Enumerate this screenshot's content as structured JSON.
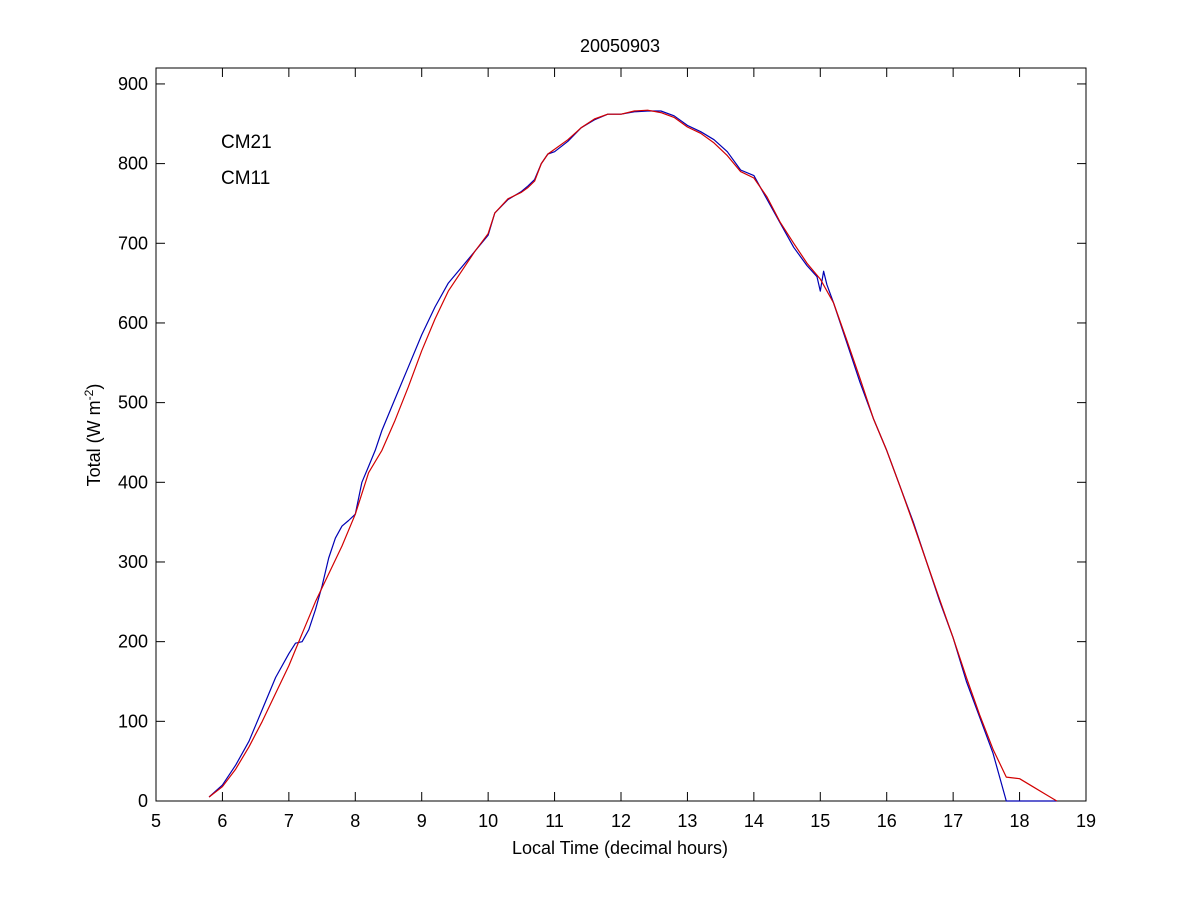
{
  "chart_data": {
    "type": "line",
    "title": "20050903",
    "xlabel": "Local Time (decimal hours)",
    "ylabel": {
      "base": "Total (W m",
      "sup": "-2",
      "close": ")"
    },
    "xlim": [
      5,
      19
    ],
    "ylim": [
      0,
      920
    ],
    "xticks": [
      5,
      6,
      7,
      8,
      9,
      10,
      11,
      12,
      13,
      14,
      15,
      16,
      17,
      18,
      19
    ],
    "yticks": [
      0,
      100,
      200,
      300,
      400,
      500,
      600,
      700,
      800,
      900
    ],
    "grid": false,
    "legend": {
      "placement": "top-left"
    },
    "series": [
      {
        "name": "CM21",
        "color": "#0000b4",
        "x": [
          5.8,
          6.0,
          6.2,
          6.4,
          6.6,
          6.8,
          7.0,
          7.1,
          7.2,
          7.3,
          7.4,
          7.5,
          7.6,
          7.7,
          7.8,
          7.9,
          8.0,
          8.1,
          8.2,
          8.3,
          8.4,
          8.6,
          8.8,
          9.0,
          9.2,
          9.4,
          9.6,
          9.8,
          10.0,
          10.1,
          10.3,
          10.5,
          10.6,
          10.7,
          10.8,
          10.9,
          11.0,
          11.2,
          11.4,
          11.6,
          11.8,
          12.0,
          12.2,
          12.4,
          12.6,
          12.8,
          13.0,
          13.2,
          13.4,
          13.6,
          13.8,
          14.0,
          14.2,
          14.4,
          14.6,
          14.8,
          14.95,
          15.0,
          15.05,
          15.1,
          15.2,
          15.4,
          15.6,
          15.8,
          16.0,
          16.2,
          16.4,
          16.6,
          16.8,
          17.0,
          17.2,
          17.4,
          17.6,
          17.8,
          18.0,
          18.2,
          18.4,
          18.56
        ],
        "y": [
          5,
          20,
          45,
          75,
          115,
          155,
          185,
          198,
          200,
          215,
          240,
          270,
          305,
          330,
          345,
          352,
          360,
          400,
          420,
          440,
          465,
          505,
          545,
          585,
          620,
          650,
          670,
          690,
          710,
          738,
          755,
          765,
          772,
          780,
          800,
          812,
          815,
          828,
          845,
          855,
          862,
          862,
          865,
          866,
          866,
          860,
          848,
          840,
          830,
          815,
          792,
          785,
          755,
          725,
          695,
          672,
          658,
          640,
          665,
          648,
          625,
          575,
          525,
          480,
          440,
          395,
          350,
          300,
          250,
          205,
          150,
          105,
          60,
          0,
          0,
          0,
          0,
          0
        ]
      },
      {
        "name": "CM11",
        "color": "#d20000",
        "x": [
          5.8,
          6.0,
          6.2,
          6.4,
          6.6,
          6.8,
          7.0,
          7.2,
          7.4,
          7.6,
          7.8,
          8.0,
          8.2,
          8.4,
          8.6,
          8.8,
          9.0,
          9.2,
          9.4,
          9.6,
          9.8,
          10.0,
          10.1,
          10.3,
          10.5,
          10.6,
          10.7,
          10.8,
          10.9,
          11.0,
          11.2,
          11.4,
          11.6,
          11.8,
          12.0,
          12.2,
          12.4,
          12.6,
          12.8,
          13.0,
          13.2,
          13.4,
          13.6,
          13.8,
          14.0,
          14.2,
          14.4,
          14.6,
          14.8,
          15.0,
          15.2,
          15.4,
          15.6,
          15.8,
          16.0,
          16.2,
          16.4,
          16.6,
          16.8,
          17.0,
          17.2,
          17.4,
          17.6,
          17.8,
          18.0,
          18.2,
          18.4,
          18.56
        ],
        "y": [
          5,
          18,
          40,
          68,
          100,
          135,
          170,
          210,
          250,
          285,
          320,
          360,
          412,
          440,
          478,
          520,
          565,
          605,
          640,
          665,
          690,
          712,
          738,
          756,
          764,
          770,
          778,
          800,
          812,
          818,
          830,
          845,
          856,
          862,
          862,
          866,
          867,
          864,
          858,
          846,
          838,
          826,
          810,
          790,
          782,
          758,
          726,
          700,
          675,
          655,
          625,
          578,
          530,
          480,
          440,
          395,
          348,
          300,
          252,
          205,
          155,
          108,
          65,
          30,
          28,
          18,
          8,
          0
        ]
      }
    ]
  }
}
